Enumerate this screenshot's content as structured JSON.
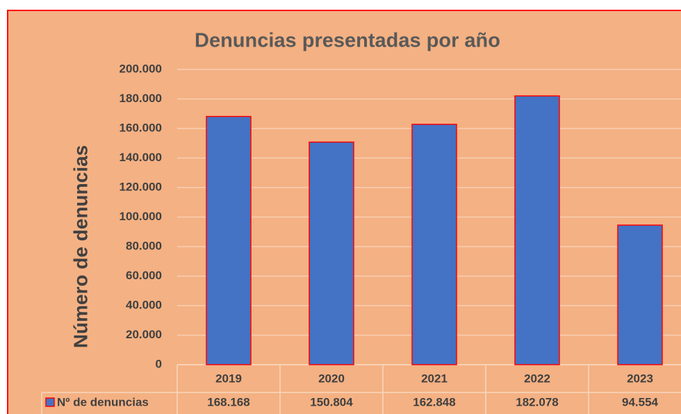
{
  "chart_data": {
    "type": "bar",
    "title": "Denuncias presentadas por año",
    "y_label": "Número de denuncias",
    "categories": [
      "2019",
      "2020",
      "2021",
      "2022",
      "2023"
    ],
    "series": [
      {
        "name": "Nº de denuncias",
        "color": "#4472c4",
        "values": [
          168168,
          150804,
          162848,
          182078,
          94554
        ],
        "value_labels": [
          "168.168",
          "150.804",
          "162.848",
          "182.078",
          "94.554"
        ]
      }
    ],
    "ylim": [
      0,
      200000
    ],
    "yticks": [
      0,
      {
        "value": 20000,
        "label": "20.000"
      },
      {
        "value": 40000,
        "label": "40.000"
      },
      {
        "value": 60000,
        "label": "60.000"
      },
      {
        "value": 80000,
        "label": "80.000"
      },
      {
        "value": 100000,
        "label": "100.000"
      },
      {
        "value": 120000,
        "label": "120.000"
      },
      {
        "value": 140000,
        "label": "140.000"
      },
      {
        "value": 160000,
        "label": "160.000"
      },
      {
        "value": 180000,
        "label": "180.000"
      },
      {
        "value": 200000,
        "label": "200.000"
      }
    ],
    "grid": true
  }
}
